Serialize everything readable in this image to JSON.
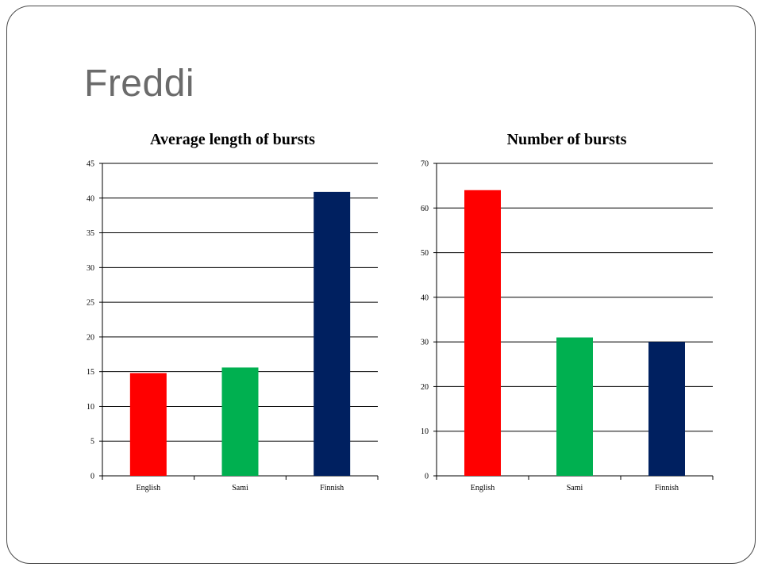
{
  "slide": {
    "title": "Freddi"
  },
  "chart_data": [
    {
      "type": "bar",
      "title": "Average length of bursts",
      "categories": [
        "English",
        "Sami",
        "Finnish"
      ],
      "values": [
        14.8,
        15.6,
        40.9
      ],
      "colors": [
        "#ff0000",
        "#00b050",
        "#002060"
      ],
      "ylim": [
        0,
        45
      ],
      "yticks": [
        "0",
        "5",
        "10",
        "15",
        "20",
        "25",
        "30",
        "35",
        "40",
        "45"
      ],
      "grid": true,
      "legend": "none"
    },
    {
      "type": "bar",
      "title": "Number of bursts",
      "categories": [
        "English",
        "Sami",
        "Finnish"
      ],
      "values": [
        64,
        31,
        30
      ],
      "colors": [
        "#ff0000",
        "#00b050",
        "#002060"
      ],
      "ylim": [
        0,
        70
      ],
      "yticks": [
        "0",
        "10",
        "20",
        "30",
        "40",
        "50",
        "60",
        "70"
      ],
      "grid": true,
      "legend": "none"
    }
  ]
}
